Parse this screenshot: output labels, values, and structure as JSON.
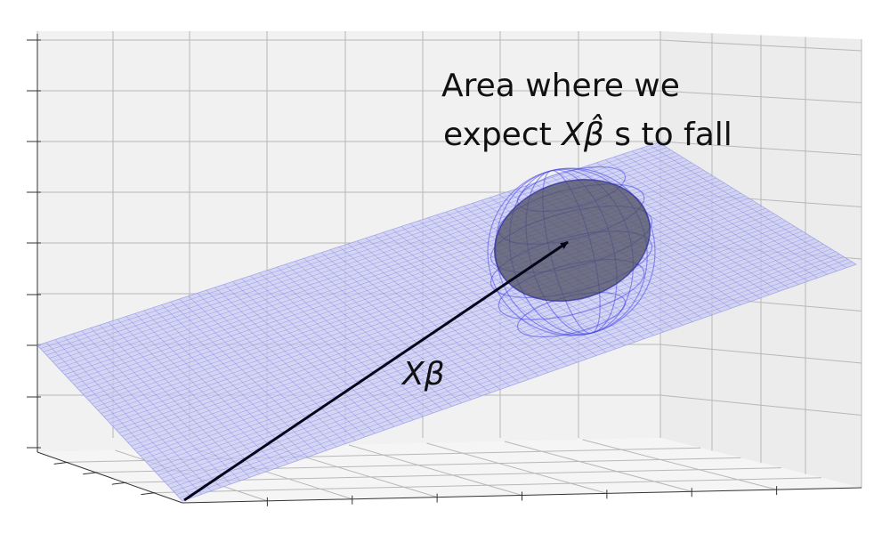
{
  "annotation": {
    "line1": "Area where we",
    "line2_prefix": "expect ",
    "line2_math": "Xβ̂",
    "line2_suffix": "s to fall"
  },
  "vector_label": "Xβ",
  "colors": {
    "pane_back": "#f0f0f0",
    "pane_left": "#e6e6e6",
    "pane_floor": "#f4f4f4",
    "grid": "#b0b0b0",
    "plane_fill": "#c9ccf2",
    "plane_mesh": "#5a5ad8",
    "sphere_wire": "#5555ee",
    "disc_fill": "#555566",
    "arrow": "#05051a",
    "axis": "#333333"
  }
}
